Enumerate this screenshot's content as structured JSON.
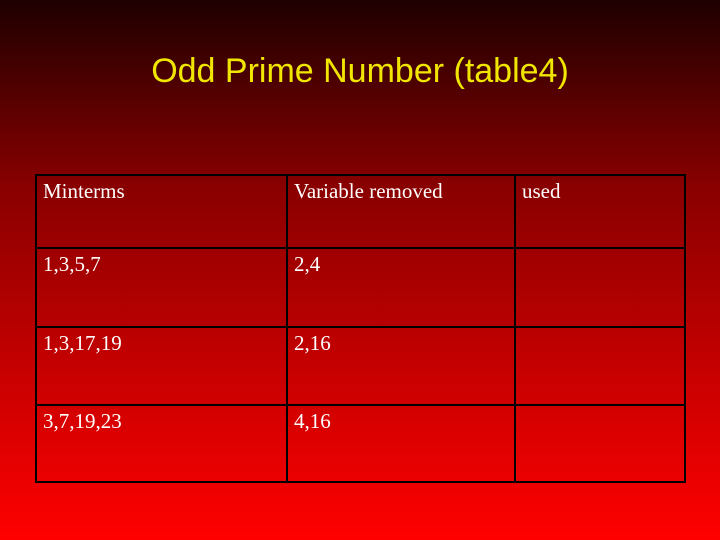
{
  "title": "Odd Prime Number (table4)",
  "table": {
    "header": [
      "Minterms",
      "Variable removed",
      "used"
    ],
    "rows": [
      [
        "1,3,5,7",
        "2,4"
      ],
      [
        "1,3,17,19",
        "2,16"
      ],
      [
        "3,7,19,23",
        "4,16"
      ]
    ]
  }
}
